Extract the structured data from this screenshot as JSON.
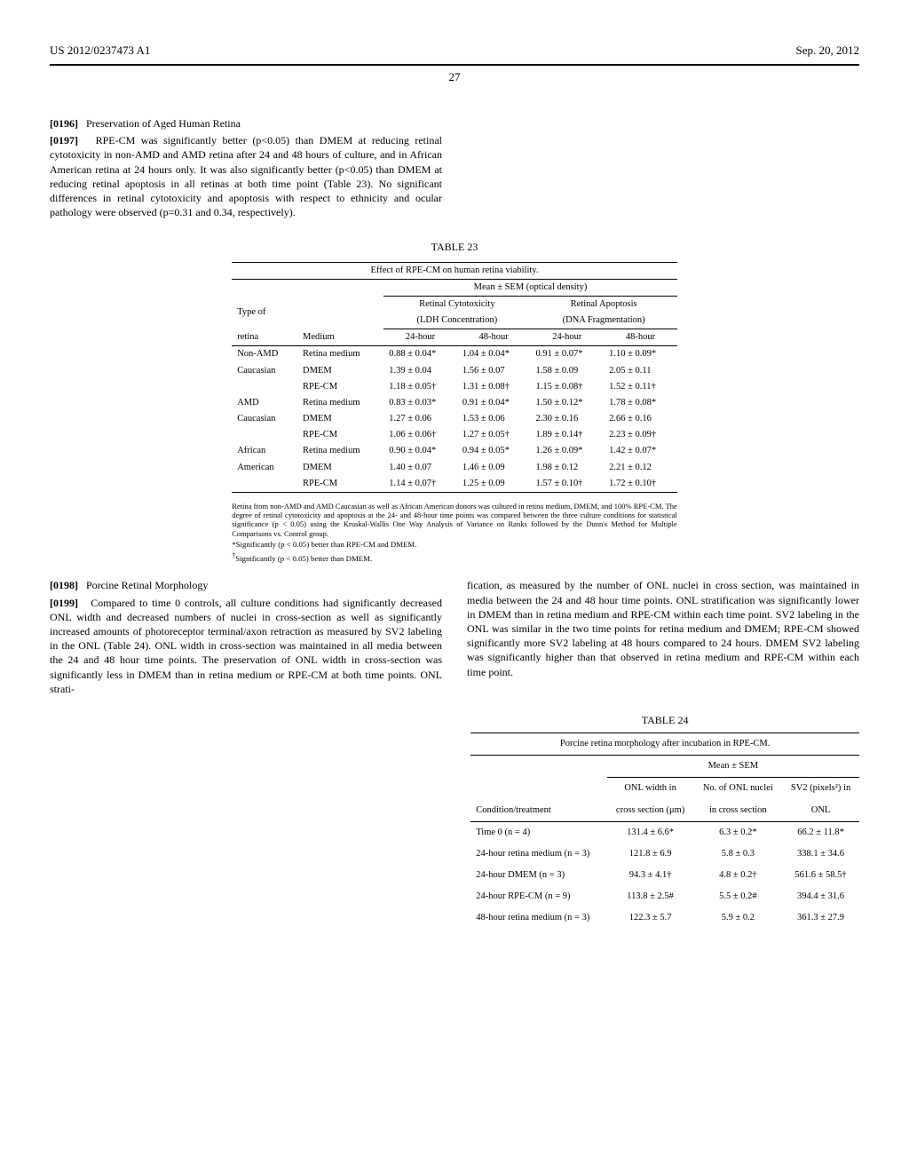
{
  "header": {
    "left": "US 2012/0237473 A1",
    "right": "Sep. 20, 2012"
  },
  "page_number": "27",
  "para_0196_num": "[0196]",
  "para_0196_title": "Preservation of Aged Human Retina",
  "para_0197_num": "[0197]",
  "para_0197_text": "RPE-CM was significantly better (p<0.05) than DMEM at reducing retinal cytotoxicity in non-AMD and AMD retina after 24 and 48 hours of culture, and in African American retina at 24 hours only. It was also significantly better (p<0.05) than DMEM at reducing retinal apoptosis in all retinas at both time point (Table 23). No significant differences in retinal cytotoxicity and apoptosis with respect to ethnicity and ocular pathology were observed (p=0.31 and 0.34, respectively).",
  "table23": {
    "label": "TABLE 23",
    "caption_top": "Effect of RPE-CM on human retina viability.",
    "spanner": "Mean ± SEM (optical density)",
    "col_group1": "Retinal Cytotoxicity",
    "col_group1b": "(LDH Concentration)",
    "col_group2": "Retinal Apoptosis",
    "col_group2b": "(DNA Fragmentation)",
    "row_head1": "Type of",
    "row_head2": "retina",
    "col_medium": "Medium",
    "col_24": "24-hour",
    "col_48": "48-hour",
    "rows": [
      {
        "r": "Non-AMD",
        "m": "Retina medium",
        "a": "0.88 ± 0.04*",
        "b": "1.04 ± 0.04*",
        "c": "0.91 ± 0.07*",
        "d": "1.10 ± 0.09*"
      },
      {
        "r": "Caucasian",
        "m": "DMEM",
        "a": "1.39 ± 0.04",
        "b": "1.56 ± 0.07",
        "c": "1.58 ± 0.09",
        "d": "2.05 ± 0.11"
      },
      {
        "r": "",
        "m": "RPE-CM",
        "a": "1.18 ± 0.05†",
        "b": "1.31 ± 0.08†",
        "c": "1.15 ± 0.08†",
        "d": "1.52 ± 0.11†"
      },
      {
        "r": "AMD",
        "m": "Retina medium",
        "a": "0.83 ± 0.03*",
        "b": "0.91 ± 0.04*",
        "c": "1.50 ± 0.12*",
        "d": "1.78 ± 0.08*"
      },
      {
        "r": "Caucasian",
        "m": "DMEM",
        "a": "1.27 ± 0.06",
        "b": "1.53 ± 0.06",
        "c": "2.30 ± 0.16",
        "d": "2.66 ± 0.16"
      },
      {
        "r": "",
        "m": "RPE-CM",
        "a": "1.06 ± 0.06†",
        "b": "1.27 ± 0.05†",
        "c": "1.89 ± 0.14†",
        "d": "2.23 ± 0.09†"
      },
      {
        "r": "African",
        "m": "Retina medium",
        "a": "0.90 ± 0.04*",
        "b": "0.94 ± 0.05*",
        "c": "1.26 ± 0.09*",
        "d": "1.42 ± 0.07*"
      },
      {
        "r": "American",
        "m": "DMEM",
        "a": "1.40 ± 0.07",
        "b": "1.46 ± 0.09",
        "c": "1.98 ± 0.12",
        "d": "2.21 ± 0.12"
      },
      {
        "r": "",
        "m": "RPE-CM",
        "a": "1.14 ± 0.07†",
        "b": "1.25 ± 0.09",
        "c": "1.57 ± 0.10†",
        "d": "1.72 ± 0.10†"
      }
    ],
    "footnote_main": "Retina from non-AMD and AMD Caucasian as well as African American donors was cultured in retina medium, DMEM, and 100% RPE-CM. The degree of retinal cytotoxicity and apoptosis at the 24- and 48-hour time points was compared between the three culture conditions for statistical significance (p < 0.05) using the Kruskal-Wallis One Way Analysis of Variance on Ranks followed by the Dunn's Method for Multiple Comparisons vs. Control group.",
    "footnote_star": "*Significantly (p < 0.05) better than RPE-CM and DMEM.",
    "footnote_dagger": "†Significantly (p < 0.05) better than DMEM."
  },
  "para_0198_num": "[0198]",
  "para_0198_title": "Porcine Retinal Morphology",
  "para_0199_num": "[0199]",
  "para_0199_left": "Compared to time 0 controls, all culture conditions had significantly decreased ONL width and decreased numbers of nuclei in cross-section as well as significantly increased amounts of photoreceptor terminal/axon retraction as measured by SV2 labeling in the ONL (Table 24). ONL width in cross-section was maintained in all media between the 24 and 48 hour time points. The preservation of ONL width in cross-section was significantly less in DMEM than in retina medium or RPE-CM at both time points. ONL strati-",
  "para_0199_right": "fication, as measured by the number of ONL nuclei in cross section, was maintained in media between the 24 and 48 hour time points. ONL stratification was significantly lower in DMEM than in retina medium and RPE-CM within each time point. SV2 labeling in the ONL was similar in the two time points for retina medium and DMEM; RPE-CM showed significantly more SV2 labeling at 48 hours compared to 24 hours. DMEM SV2 labeling was significantly higher than that observed in retina medium and RPE-CM within each time point.",
  "table24": {
    "label": "TABLE 24",
    "caption_top": "Porcine retina morphology after incubation in RPE-CM.",
    "spanner": "Mean ± SEM",
    "col_cond": "Condition/treatment",
    "col_onlw1": "ONL width in",
    "col_onlw2": "cross section (μm)",
    "col_nuc1": "No. of ONL nuclei",
    "col_nuc2": "in cross section",
    "col_sv1": "SV2 (pixels²) in",
    "col_sv2": "ONL",
    "rows": [
      {
        "c": "Time 0 (n = 4)",
        "a": "131.4 ± 6.6*",
        "b": "6.3 ± 0.2*",
        "d": "66.2 ± 11.8*"
      },
      {
        "c": "24-hour retina medium (n = 3)",
        "a": "121.8 ± 6.9",
        "b": "5.8 ± 0.3",
        "d": "338.1 ± 34.6"
      },
      {
        "c": "24-hour DMEM (n = 3)",
        "a": "94.3 ± 4.1†",
        "b": "4.8 ± 0.2†",
        "d": "561.6 ± 58.5†"
      },
      {
        "c": "24-hour RPE-CM (n = 9)",
        "a": "113.8 ± 2.5#",
        "b": "5.5 ± 0.2#",
        "d": "394.4 ± 31.6"
      },
      {
        "c": "48-hour retina medium (n = 3)",
        "a": "122.3 ± 5.7",
        "b": "5.9 ± 0.2",
        "d": "361.3 ± 27.9"
      }
    ]
  }
}
